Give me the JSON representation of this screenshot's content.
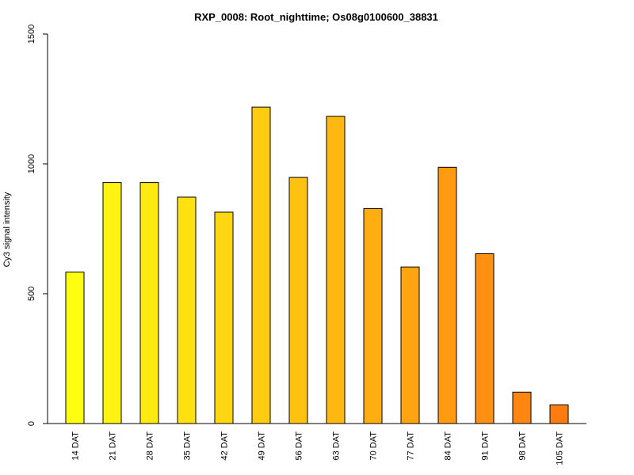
{
  "chart_data": {
    "type": "bar",
    "title": "RXP_0008: Root_nighttime; Os08g0100600_38831",
    "xlabel": "",
    "ylabel": "Cy3 signal intensity",
    "ylim": [
      0,
      1500
    ],
    "yticks": [
      0,
      500,
      1000,
      1500
    ],
    "grid": false,
    "categories": [
      "14 DAT",
      "21 DAT",
      "28 DAT",
      "35 DAT",
      "42 DAT",
      "49 DAT",
      "56 DAT",
      "63 DAT",
      "70 DAT",
      "77 DAT",
      "84 DAT",
      "91 DAT",
      "98 DAT",
      "105 DAT"
    ],
    "values": [
      583,
      928,
      928,
      872,
      814,
      1219,
      948,
      1183,
      828,
      603,
      987,
      654,
      121,
      72
    ],
    "colors": [
      "#FFFF11",
      "#FFF411",
      "#FFEA11",
      "#FFE011",
      "#FFD611",
      "#FFCC11",
      "#FFC211",
      "#FFB811",
      "#FFAE11",
      "#FFA411",
      "#FF9A11",
      "#FF9011",
      "#FF8611",
      "#FF7C11"
    ]
  }
}
